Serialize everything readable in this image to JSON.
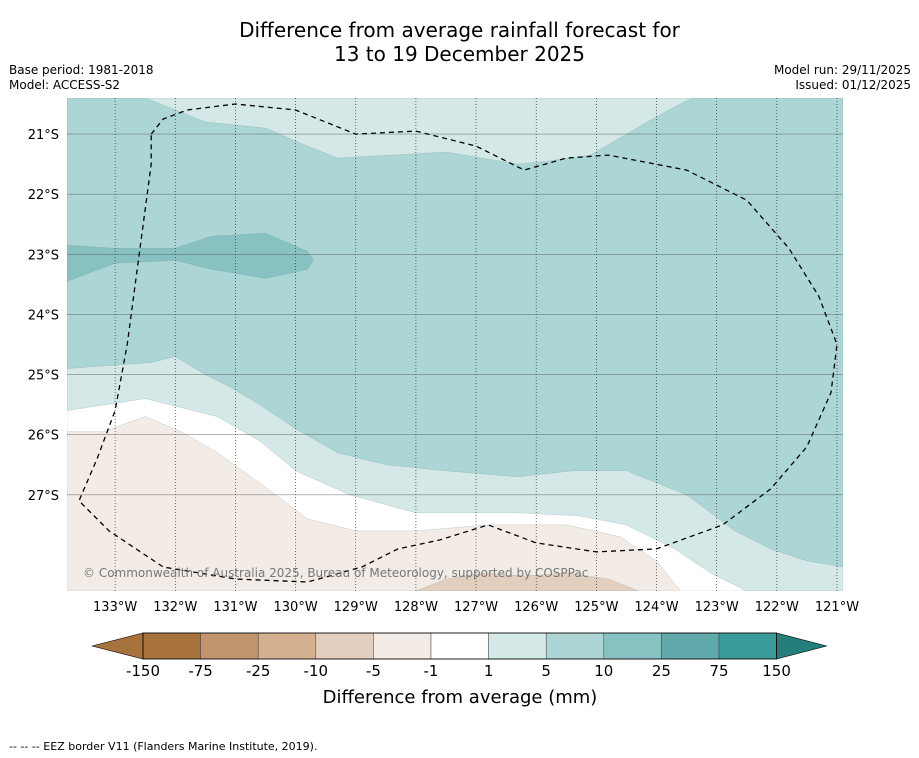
{
  "title": {
    "line1": "Difference from average rainfall forecast for",
    "line2": "13 to 19 December 2025"
  },
  "meta": {
    "base_period": "Base period: 1981-2018",
    "model": "Model: ACCESS-S2",
    "model_run": "Model run: 29/11/2025",
    "issued": "Issued: 01/12/2025"
  },
  "copyright": "© Commonwealth of Australia 2025, Bureau of Meteorology, supported by COSPPac",
  "footer": "--  --  -- EEZ border V11 (Flanders Marine Institute, 2019).",
  "colors": {
    "c_m150": "#a8723c",
    "c_m75": "#c0956b",
    "c_m25": "#d4b08e",
    "c_m10": "#e3cfbe",
    "c_m5": "#f3ece6",
    "c_m1": "#ffffff",
    "c_1": "#d3e8e7",
    "c_5": "#acd5d5",
    "c_10": "#87c1c1",
    "c_25": "#5fa9aa",
    "c_75": "#389b98",
    "c_150": "#237e7c"
  },
  "chart_data": {
    "type": "heatmap",
    "title": "Difference from average rainfall forecast for 13 to 19 December 2025",
    "x_ticks": [
      {
        "value": -133,
        "label": "133°W"
      },
      {
        "value": -132,
        "label": "132°W"
      },
      {
        "value": -131,
        "label": "131°W"
      },
      {
        "value": -130,
        "label": "130°W"
      },
      {
        "value": -129,
        "label": "129°W"
      },
      {
        "value": -128,
        "label": "128°W"
      },
      {
        "value": -127,
        "label": "127°W"
      },
      {
        "value": -126,
        "label": "126°W"
      },
      {
        "value": -125,
        "label": "125°W"
      },
      {
        "value": -124,
        "label": "124°W"
      },
      {
        "value": -123,
        "label": "123°W"
      },
      {
        "value": -122,
        "label": "122°W"
      },
      {
        "value": -121,
        "label": "121°W"
      }
    ],
    "y_ticks": [
      {
        "value": -21,
        "label": "21°S"
      },
      {
        "value": -22,
        "label": "22°S"
      },
      {
        "value": -23,
        "label": "23°S"
      },
      {
        "value": -24,
        "label": "24°S"
      },
      {
        "value": -25,
        "label": "25°S"
      },
      {
        "value": -26,
        "label": "26°S"
      },
      {
        "value": -27,
        "label": "27°S"
      }
    ],
    "xlim": [
      -133.8,
      -120.9
    ],
    "ylim": [
      -28.6,
      -20.4
    ],
    "colorbar": {
      "label": "Difference from average (mm)",
      "levels": [
        "-150",
        "-75",
        "-25",
        "-10",
        "-5",
        "-1",
        "1",
        "5",
        "10",
        "25",
        "75",
        "150"
      ]
    },
    "regions": [
      {
        "name": "band-1-to-5-north",
        "range": "1 to 5 mm",
        "color": "c_1",
        "points": [
          [
            -133.8,
            -20.4
          ],
          [
            -120.9,
            -20.4
          ],
          [
            -120.9,
            -28.6
          ],
          [
            -133.8,
            -28.6
          ]
        ]
      },
      {
        "name": "main-5-to-10",
        "range": "5 to 10 mm",
        "color": "c_5",
        "points": [
          [
            -133.8,
            -20.4
          ],
          [
            -132.5,
            -20.4
          ],
          [
            -131.5,
            -20.8
          ],
          [
            -130.5,
            -20.9
          ],
          [
            -129.8,
            -21.2
          ],
          [
            -129.3,
            -21.4
          ],
          [
            -127.5,
            -21.3
          ],
          [
            -126.3,
            -21.5
          ],
          [
            -125.8,
            -21.45
          ],
          [
            -125.1,
            -21.35
          ],
          [
            -124.5,
            -21.0
          ],
          [
            -123.8,
            -20.6
          ],
          [
            -123.4,
            -20.4
          ],
          [
            -120.9,
            -20.4
          ],
          [
            -120.9,
            -28.2
          ],
          [
            -121.5,
            -28.1
          ],
          [
            -122.1,
            -27.9
          ],
          [
            -122.7,
            -27.6
          ],
          [
            -123.1,
            -27.3
          ],
          [
            -123.5,
            -27.0
          ],
          [
            -124.0,
            -26.8
          ],
          [
            -124.5,
            -26.6
          ],
          [
            -125.4,
            -26.6
          ],
          [
            -126.3,
            -26.7
          ],
          [
            -127.5,
            -26.6
          ],
          [
            -128.5,
            -26.5
          ],
          [
            -129.3,
            -26.3
          ],
          [
            -130.0,
            -25.9
          ],
          [
            -130.6,
            -25.5
          ],
          [
            -131.1,
            -25.2
          ],
          [
            -131.5,
            -25.0
          ],
          [
            -132.0,
            -24.7
          ],
          [
            -132.4,
            -24.8
          ],
          [
            -133.8,
            -24.9
          ]
        ]
      },
      {
        "name": "strip-10-to-25",
        "range": "10 to 25 mm",
        "color": "c_10",
        "points": [
          [
            -133.8,
            -22.85
          ],
          [
            -133.0,
            -22.9
          ],
          [
            -132.0,
            -22.9
          ],
          [
            -131.4,
            -22.7
          ],
          [
            -130.5,
            -22.65
          ],
          [
            -129.8,
            -22.95
          ],
          [
            -129.7,
            -23.1
          ],
          [
            -129.8,
            -23.25
          ],
          [
            -130.5,
            -23.4
          ],
          [
            -131.4,
            -23.25
          ],
          [
            -132.0,
            -23.1
          ],
          [
            -133.0,
            -23.15
          ],
          [
            -133.8,
            -23.45
          ]
        ]
      },
      {
        "name": "band-1-to-5-south-white",
        "range": "-1 to 1 mm",
        "color": "c_m1",
        "points": [
          [
            -133.8,
            -25.6
          ],
          [
            -132.5,
            -25.4
          ],
          [
            -131.3,
            -25.7
          ],
          [
            -130.6,
            -26.1
          ],
          [
            -130.0,
            -26.6
          ],
          [
            -129.1,
            -27.0
          ],
          [
            -128.0,
            -27.3
          ],
          [
            -126.3,
            -27.3
          ],
          [
            -125.3,
            -27.35
          ],
          [
            -124.5,
            -27.5
          ],
          [
            -123.7,
            -27.9
          ],
          [
            -123.1,
            -28.3
          ],
          [
            -122.5,
            -28.6
          ],
          [
            -133.8,
            -28.6
          ]
        ]
      },
      {
        "name": "band-minus1-to-minus5",
        "range": "-1 to -5 mm",
        "color": "c_m5",
        "points": [
          [
            -133.8,
            -25.95
          ],
          [
            -133.2,
            -25.95
          ],
          [
            -132.5,
            -25.7
          ],
          [
            -131.9,
            -25.95
          ],
          [
            -131.3,
            -26.3
          ],
          [
            -130.6,
            -26.8
          ],
          [
            -129.8,
            -27.4
          ],
          [
            -129.0,
            -27.6
          ],
          [
            -128.0,
            -27.6
          ],
          [
            -126.8,
            -27.5
          ],
          [
            -125.5,
            -27.5
          ],
          [
            -124.6,
            -27.7
          ],
          [
            -124.0,
            -28.1
          ],
          [
            -123.6,
            -28.6
          ],
          [
            -133.8,
            -28.6
          ]
        ]
      },
      {
        "name": "patch-minus5-to-minus10",
        "range": "-5 to -10 mm",
        "color": "c_m10",
        "points": [
          [
            -128.0,
            -28.6
          ],
          [
            -127.5,
            -28.4
          ],
          [
            -126.9,
            -28.3
          ],
          [
            -126.2,
            -28.35
          ],
          [
            -125.5,
            -28.3
          ],
          [
            -124.8,
            -28.4
          ],
          [
            -124.3,
            -28.6
          ]
        ]
      }
    ],
    "eez_border": [
      [
        -132.4,
        -21.0
      ],
      [
        -132.2,
        -20.75
      ],
      [
        -131.8,
        -20.6
      ],
      [
        -131.0,
        -20.5
      ],
      [
        -130.0,
        -20.6
      ],
      [
        -129.0,
        -21.0
      ],
      [
        -128.0,
        -20.95
      ],
      [
        -127.0,
        -21.2
      ],
      [
        -126.2,
        -21.6
      ],
      [
        -125.5,
        -21.4
      ],
      [
        -124.8,
        -21.35
      ],
      [
        -123.5,
        -21.6
      ],
      [
        -122.5,
        -22.1
      ],
      [
        -121.8,
        -22.9
      ],
      [
        -121.3,
        -23.7
      ],
      [
        -121.0,
        -24.5
      ],
      [
        -121.1,
        -25.3
      ],
      [
        -121.5,
        -26.2
      ],
      [
        -122.1,
        -26.9
      ],
      [
        -122.9,
        -27.5
      ],
      [
        -124.0,
        -27.9
      ],
      [
        -125.0,
        -27.95
      ],
      [
        -126.0,
        -27.8
      ],
      [
        -126.8,
        -27.5
      ],
      [
        -127.6,
        -27.75
      ],
      [
        -128.3,
        -27.9
      ],
      [
        -128.9,
        -28.2
      ],
      [
        -129.8,
        -28.45
      ],
      [
        -131.0,
        -28.4
      ],
      [
        -132.2,
        -28.2
      ],
      [
        -133.1,
        -27.6
      ],
      [
        -133.6,
        -27.1
      ],
      [
        -133.3,
        -26.4
      ],
      [
        -133.0,
        -25.6
      ],
      [
        -132.8,
        -24.5
      ],
      [
        -132.6,
        -23.0
      ],
      [
        -132.4,
        -21.5
      ],
      [
        -132.4,
        -21.0
      ]
    ]
  }
}
